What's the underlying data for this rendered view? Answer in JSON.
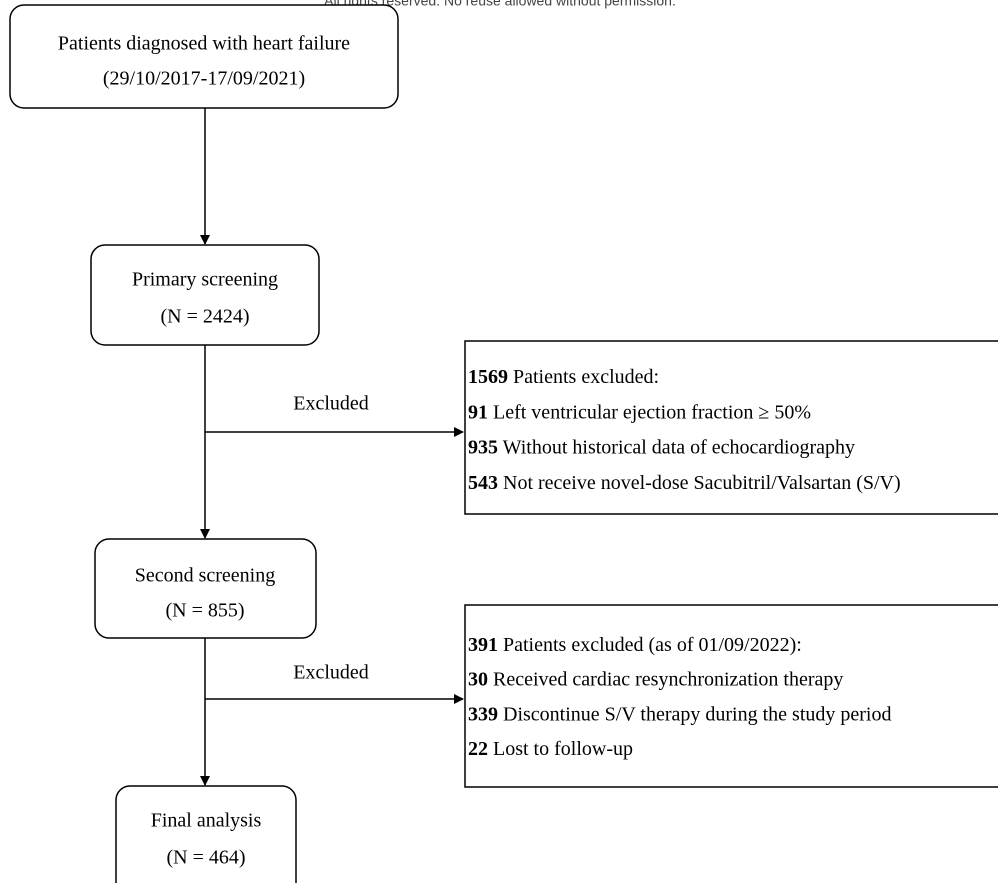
{
  "note": "All rights reserved. No reuse allowed without permission.",
  "nodes": [
    {
      "lines": [
        "Patients diagnosed with heart failure",
        "(29/10/2017-17/09/2021)"
      ]
    },
    {
      "lines": [
        "Primary screening",
        "(N = 2424)"
      ]
    },
    {
      "lines": [
        "Second screening",
        "(N = 855)"
      ]
    },
    {
      "lines": [
        "Final analysis",
        "(N = 464)"
      ]
    }
  ],
  "exclusions": [
    {
      "label": "Excluded",
      "items": [
        {
          "count": 1569,
          "text": "Patients excluded:"
        },
        {
          "count": 91,
          "text": "Left ventricular ejection fraction ≥ 50%"
        },
        {
          "count": 935,
          "text": "Without historical data of echocardiography"
        },
        {
          "count": 543,
          "text": "Not receive novel-dose Sacubitril/Valsartan (S/V)"
        }
      ]
    },
    {
      "label": "Excluded",
      "items": [
        {
          "count": 391,
          "text": "Patients excluded (as of 01/09/2022):"
        },
        {
          "count": 30,
          "text": "Received cardiac resynchronization therapy"
        },
        {
          "count": 339,
          "text": "Discontinue S/V therapy during the study period"
        },
        {
          "count": 22,
          "text": "Lost to follow-up"
        }
      ]
    }
  ]
}
